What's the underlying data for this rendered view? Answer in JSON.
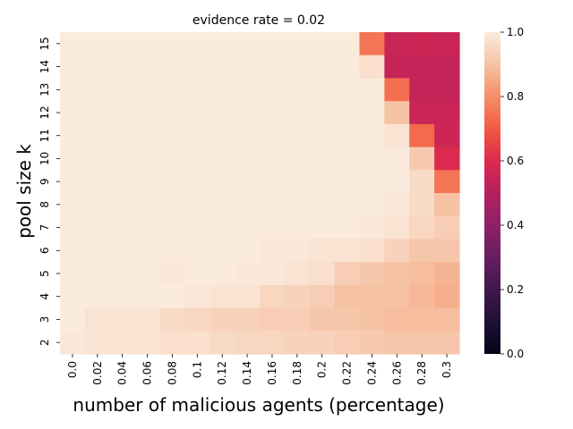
{
  "chart_data": {
    "type": "heatmap",
    "title": "evidence rate = 0.02",
    "xlabel": "number of malicious agents (percentage)",
    "ylabel": "pool size k",
    "x_categories": [
      "0.0",
      "0.02",
      "0.04",
      "0.06",
      "0.08",
      "0.1",
      "0.12",
      "0.14",
      "0.16",
      "0.18",
      "0.2",
      "0.22",
      "0.24",
      "0.26",
      "0.28",
      "0.3"
    ],
    "y_categories": [
      "15",
      "14",
      "13",
      "12",
      "11",
      "10",
      "9",
      "8",
      "7",
      "6",
      "5",
      "4",
      "3",
      "2"
    ],
    "values": [
      [
        1,
        1,
        1,
        1,
        1,
        1,
        1,
        1,
        1,
        1,
        1,
        1,
        0.75,
        0.55,
        0.56,
        0.55
      ],
      [
        1,
        1,
        1,
        1,
        1,
        1,
        1,
        1,
        1,
        1,
        1,
        1,
        0.97,
        0.54,
        0.54,
        0.54
      ],
      [
        1,
        1,
        1,
        1,
        1,
        1,
        1,
        1,
        1,
        1,
        1,
        1,
        1,
        0.74,
        0.54,
        0.54
      ],
      [
        1,
        1,
        1,
        1,
        1,
        1,
        1,
        1,
        1,
        1,
        1,
        1,
        1,
        0.9,
        0.55,
        0.55
      ],
      [
        1,
        1,
        1,
        1,
        1,
        1,
        1,
        1,
        1,
        1,
        1,
        1,
        1,
        0.98,
        0.73,
        0.56
      ],
      [
        1,
        1,
        1,
        1,
        1,
        1,
        1,
        1,
        1,
        1,
        1,
        1,
        1,
        1,
        0.92,
        0.6
      ],
      [
        1,
        1,
        1,
        1,
        1,
        1,
        1,
        1,
        1,
        1,
        1,
        1,
        1,
        1,
        0.96,
        0.75
      ],
      [
        1,
        1,
        1,
        1,
        1,
        1,
        1,
        1,
        1,
        1,
        1,
        1,
        1,
        0.99,
        0.96,
        0.9
      ],
      [
        1,
        1,
        1,
        1,
        1,
        1,
        1,
        1,
        1,
        1,
        1,
        1,
        0.99,
        0.98,
        0.95,
        0.93
      ],
      [
        1,
        1,
        1,
        1,
        1,
        1,
        1,
        1,
        0.99,
        0.99,
        0.98,
        0.98,
        0.97,
        0.94,
        0.91,
        0.91
      ],
      [
        1,
        1,
        1,
        1,
        0.99,
        1,
        1,
        0.99,
        0.99,
        0.98,
        0.97,
        0.93,
        0.91,
        0.9,
        0.89,
        0.87
      ],
      [
        1,
        1,
        1,
        1,
        1,
        0.99,
        0.98,
        0.98,
        0.95,
        0.94,
        0.93,
        0.9,
        0.9,
        0.9,
        0.88,
        0.86
      ],
      [
        1,
        0.98,
        0.98,
        0.98,
        0.96,
        0.95,
        0.94,
        0.94,
        0.93,
        0.93,
        0.91,
        0.91,
        0.9,
        0.89,
        0.89,
        0.89
      ],
      [
        0.99,
        0.98,
        0.98,
        0.98,
        0.97,
        0.97,
        0.96,
        0.95,
        0.95,
        0.94,
        0.94,
        0.93,
        0.92,
        0.91,
        0.91,
        0.91
      ]
    ],
    "vmin": 0.0,
    "vmax": 1.0,
    "colormap": "rocket",
    "colorbar": {
      "ticks": [
        "0.0",
        "0.2",
        "0.4",
        "0.6",
        "0.8",
        "1.0"
      ]
    }
  }
}
